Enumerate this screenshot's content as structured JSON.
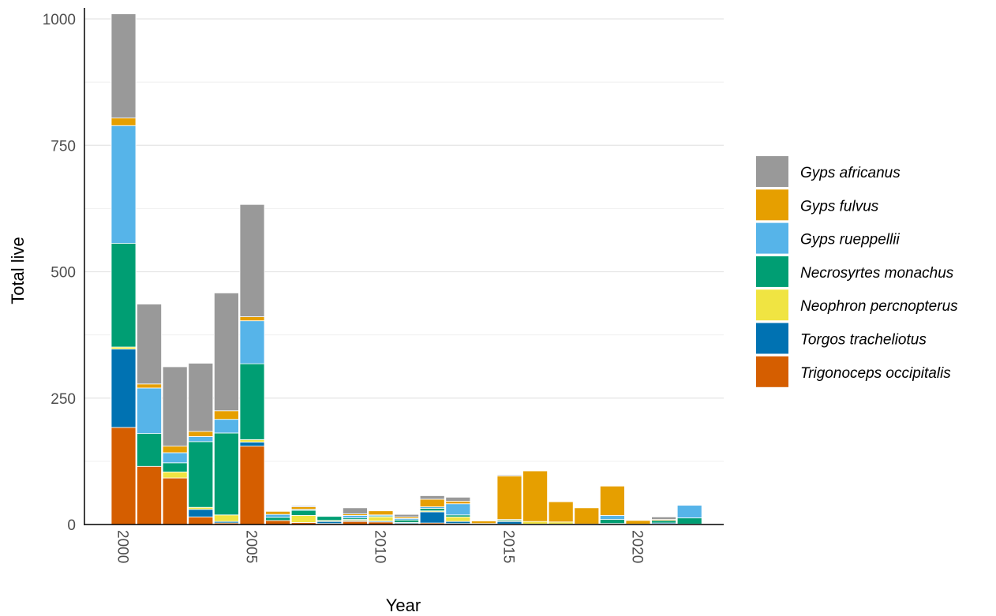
{
  "chart_data": {
    "type": "bar",
    "stacked": true,
    "title": "",
    "xlabel": "Year",
    "ylabel": "Total live",
    "x": [
      2000,
      2001,
      2002,
      2003,
      2004,
      2005,
      2006,
      2007,
      2008,
      2009,
      2010,
      2011,
      2012,
      2013,
      2014,
      2015,
      2016,
      2017,
      2018,
      2019,
      2020,
      2021,
      2022
    ],
    "x_ticks": [
      2000,
      2005,
      2010,
      2015,
      2020
    ],
    "y_ticks": [
      0,
      250,
      500,
      750,
      1000
    ],
    "ylim": [
      0,
      1010
    ],
    "grid": true,
    "legend_position": "right",
    "series": [
      {
        "name": "Trigonoceps occipitalis",
        "color": "#D55E00",
        "values": [
          192,
          115,
          92,
          15,
          3,
          155,
          8,
          4,
          2,
          6,
          5,
          2,
          3,
          2,
          1,
          1,
          1,
          1,
          1,
          1,
          1,
          1,
          1
        ]
      },
      {
        "name": "Torgos tracheliotus",
        "color": "#0072B2",
        "values": [
          155,
          0,
          0,
          15,
          3,
          8,
          0,
          0,
          4,
          2,
          2,
          2,
          22,
          4,
          1,
          5,
          0,
          0,
          0,
          0,
          0,
          2,
          0
        ]
      },
      {
        "name": "Neophron percnopterus",
        "color": "#F0E442",
        "values": [
          4,
          0,
          12,
          4,
          13,
          5,
          0,
          14,
          2,
          2,
          8,
          0,
          2,
          9,
          0,
          2,
          5,
          4,
          0,
          1,
          0,
          0,
          0
        ]
      },
      {
        "name": "Necrosyrtes monachus",
        "color": "#009E73",
        "values": [
          205,
          65,
          18,
          130,
          162,
          150,
          6,
          10,
          8,
          3,
          2,
          5,
          5,
          4,
          0,
          2,
          0,
          0,
          0,
          8,
          0,
          5,
          12
        ]
      },
      {
        "name": "Gyps rueppellii",
        "color": "#56B4E9",
        "values": [
          233,
          90,
          20,
          10,
          27,
          85,
          6,
          2,
          0,
          5,
          2,
          3,
          3,
          22,
          0,
          0,
          0,
          0,
          0,
          8,
          0,
          0,
          25
        ]
      },
      {
        "name": "Gyps fulvus",
        "color": "#E69F00",
        "values": [
          15,
          8,
          13,
          10,
          17,
          8,
          6,
          5,
          0,
          3,
          8,
          3,
          15,
          5,
          5,
          86,
          100,
          40,
          32,
          58,
          7,
          2,
          0
        ]
      },
      {
        "name": "Gyps africanus",
        "color": "#999999",
        "values": [
          206,
          158,
          157,
          135,
          233,
          222,
          0,
          2,
          0,
          12,
          0,
          5,
          7,
          8,
          0,
          2,
          0,
          0,
          0,
          0,
          0,
          5,
          0
        ]
      }
    ],
    "legend_order": [
      "Gyps africanus",
      "Gyps fulvus",
      "Gyps rueppellii",
      "Necrosyrtes monachus",
      "Neophron percnopterus",
      "Torgos tracheliotus",
      "Trigonoceps occipitalis"
    ]
  }
}
